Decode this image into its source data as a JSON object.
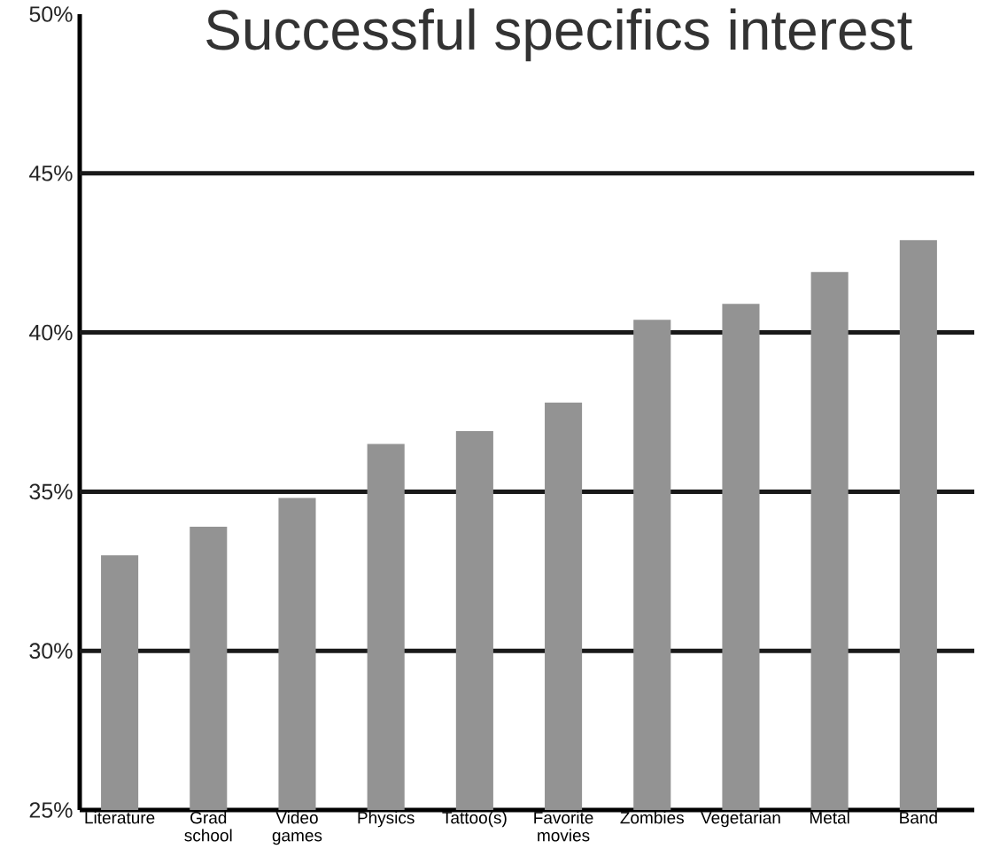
{
  "chart_data": {
    "type": "bar",
    "title": "Successful specifics interest",
    "categories": [
      "Literature",
      "Grad school",
      "Video games",
      "Physics",
      "Tattoo(s)",
      "Favorite movies",
      "Zombies",
      "Vegetarian",
      "Metal",
      "Band"
    ],
    "values": [
      33.0,
      33.9,
      34.8,
      36.5,
      36.9,
      37.8,
      40.4,
      40.9,
      41.9,
      42.9
    ],
    "color": "#939393",
    "ylim": [
      25,
      50
    ],
    "yticks": [
      {
        "value": 25,
        "label": "25%"
      },
      {
        "value": 30,
        "label": "30%"
      },
      {
        "value": 35,
        "label": "35%"
      },
      {
        "value": 40,
        "label": "40%"
      },
      {
        "value": 45,
        "label": "45%"
      },
      {
        "value": 50,
        "label": "50%"
      }
    ],
    "grid": "y"
  }
}
